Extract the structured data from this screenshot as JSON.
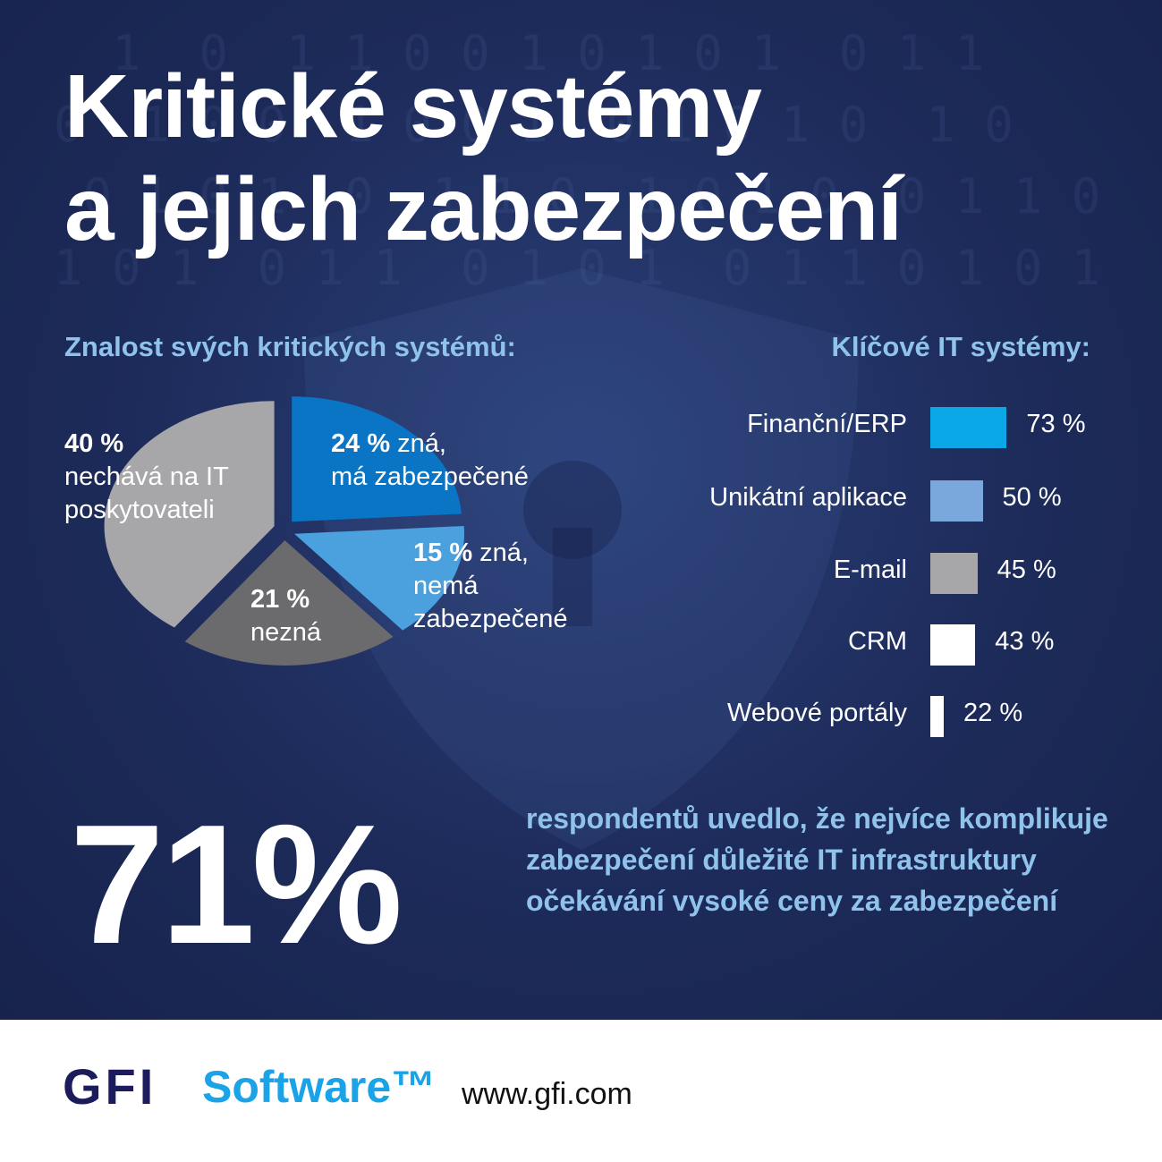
{
  "title_line1": "Kritické systémy",
  "title_line2": "a jejich zabezpečení",
  "colors": {
    "background": "#1d2b5a",
    "accent": "#8fc3ec",
    "pie": [
      "#0a75c4",
      "#4ba1dd",
      "#6b6b6d",
      "#a7a7aa"
    ],
    "bars": [
      "#0aa8e6",
      "#7aa8dd",
      "#a7a7aa",
      "#ffffff",
      "#ffffff"
    ]
  },
  "chart_data": [
    {
      "type": "pie",
      "title": "Znalost svých kritických systémů:",
      "slices": [
        {
          "value": 24,
          "label_pct": "24 %",
          "label": "zná,",
          "label2": "má zabezpečené"
        },
        {
          "value": 15,
          "label_pct": "15 %",
          "label": "zná,",
          "label2": "nemá",
          "label3": "zabezpečené"
        },
        {
          "value": 21,
          "label_pct": "21 %",
          "label": "nezná"
        },
        {
          "value": 40,
          "label_pct": "40 %",
          "label": "nechává na IT",
          "label2": "poskytovateli"
        }
      ]
    },
    {
      "type": "bar",
      "title": "Klíčové IT systémy:",
      "categories": [
        "Finanční/ERP",
        "Unikátní aplikace",
        "E-mail",
        "CRM",
        "Webové portály"
      ],
      "values": [
        73,
        50,
        45,
        43,
        22
      ],
      "value_labels": [
        "73 %",
        "50 %",
        "45 %",
        "43 %",
        "22 %"
      ]
    }
  ],
  "stat": {
    "value": "71%",
    "text": "respondentů uvedlo, že nejvíce komplikuje zabezpečení důležité IT infrastruktury očekávání vysoké ceny za zabezpečení"
  },
  "footer": {
    "logo_gfi": "GFI",
    "logo_software": "Software™",
    "url": "www.gfi.com"
  }
}
